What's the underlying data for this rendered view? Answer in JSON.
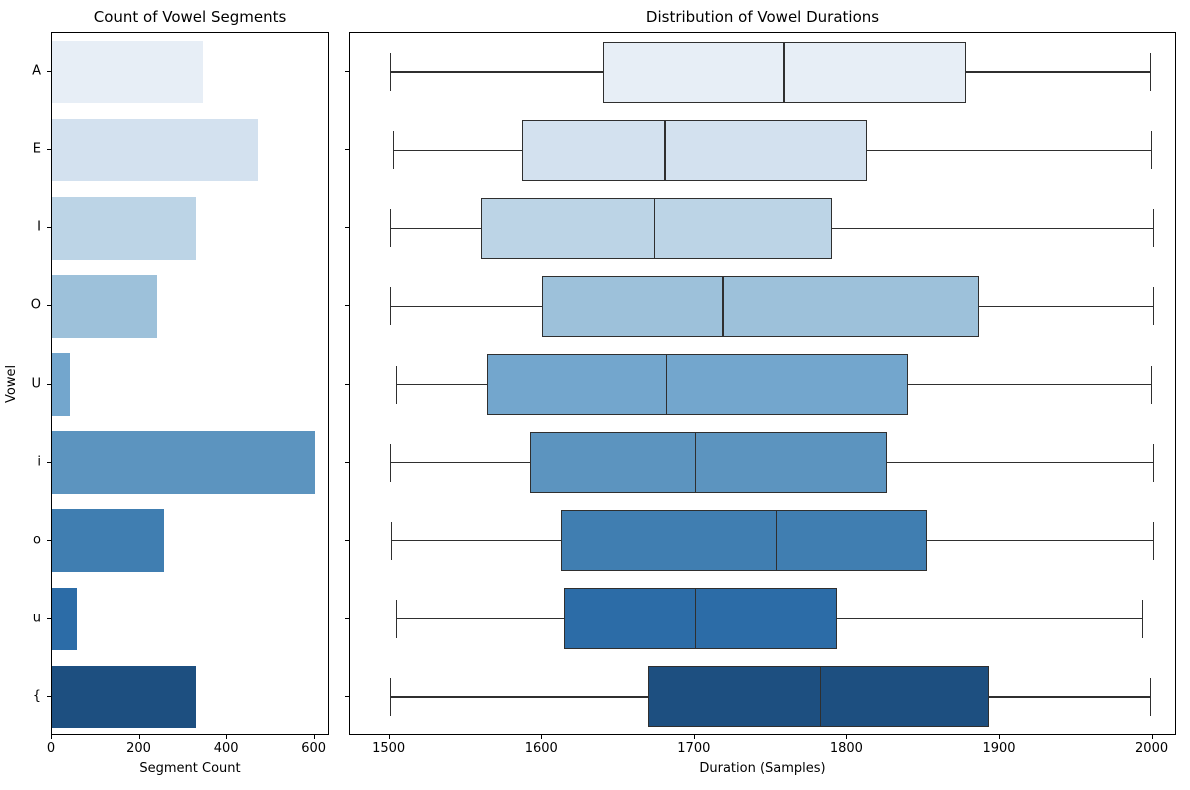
{
  "figure": {
    "background": "#ffffff",
    "palette_name": "Blues",
    "text_color": "#000000",
    "line_color": "#2f2f2f"
  },
  "chart_data": [
    {
      "type": "bar",
      "orientation": "horizontal",
      "title": "Count of Vowel Segments",
      "xlabel": "Segment Count",
      "ylabel": "Vowel",
      "categories": [
        "A",
        "E",
        "I",
        "O",
        "U",
        "i",
        "o",
        "u",
        "{"
      ],
      "values": [
        345,
        470,
        330,
        240,
        40,
        600,
        255,
        57,
        330
      ],
      "bar_colors": [
        "#e7eef6",
        "#d3e1ef",
        "#bcd4e6",
        "#9dc1da",
        "#73a6cd",
        "#5c94bf",
        "#407eb1",
        "#2c6ca7",
        "#1d4f80"
      ],
      "xlim": [
        0,
        635
      ],
      "xticks": [
        0,
        200,
        400,
        600
      ],
      "grid": false,
      "legend": "none"
    },
    {
      "type": "boxplot",
      "orientation": "horizontal",
      "title": "Distribution of Vowel Durations",
      "xlabel": "Duration (Samples)",
      "categories": [
        "A",
        "E",
        "I",
        "O",
        "U",
        "i",
        "o",
        "u",
        "{"
      ],
      "series": [
        {
          "name": "A",
          "whisker_low": 1500,
          "q1": 1640,
          "median": 1758,
          "q3": 1878,
          "whisker_high": 1998
        },
        {
          "name": "E",
          "whisker_low": 1502,
          "q1": 1587,
          "median": 1680,
          "q3": 1813,
          "whisker_high": 1999
        },
        {
          "name": "I",
          "whisker_low": 1500,
          "q1": 1560,
          "median": 1673,
          "q3": 1790,
          "whisker_high": 2000
        },
        {
          "name": "O",
          "whisker_low": 1500,
          "q1": 1600,
          "median": 1718,
          "q3": 1886,
          "whisker_high": 2000
        },
        {
          "name": "U",
          "whisker_low": 1504,
          "q1": 1564,
          "median": 1681,
          "q3": 1840,
          "whisker_high": 1999
        },
        {
          "name": "i",
          "whisker_low": 1500,
          "q1": 1592,
          "median": 1700,
          "q3": 1826,
          "whisker_high": 2000
        },
        {
          "name": "o",
          "whisker_low": 1501,
          "q1": 1612,
          "median": 1753,
          "q3": 1852,
          "whisker_high": 2000
        },
        {
          "name": "u",
          "whisker_low": 1504,
          "q1": 1614,
          "median": 1700,
          "q3": 1793,
          "whisker_high": 1993
        },
        {
          "name": "{",
          "whisker_low": 1500,
          "q1": 1669,
          "median": 1782,
          "q3": 1893,
          "whisker_high": 1998
        }
      ],
      "box_colors": [
        "#e7eef6",
        "#d3e1ef",
        "#bcd4e6",
        "#9dc1da",
        "#73a6cd",
        "#5c94bf",
        "#407eb1",
        "#2c6ca7",
        "#1d4f80"
      ],
      "xlim": [
        1474,
        2016
      ],
      "xticks": [
        1500,
        1600,
        1700,
        1800,
        1900,
        2000
      ],
      "grid": false,
      "legend": "none",
      "yticks_labeled": false
    }
  ]
}
